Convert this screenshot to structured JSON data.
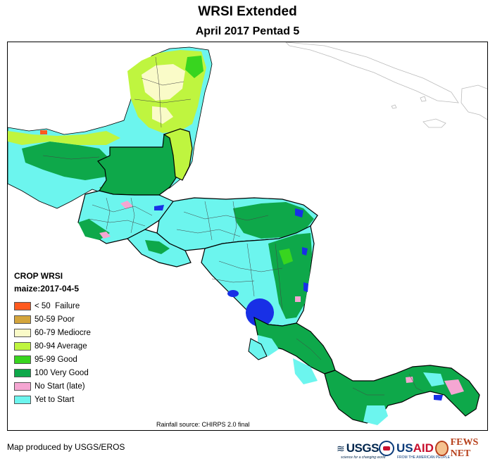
{
  "title": "WRSI Extended",
  "subtitle": "April 2017 Pentad 5",
  "legend": {
    "title": "CROP WRSI",
    "subtitle": "maize:2017-04-5",
    "items": [
      {
        "label": "< 50  Failure",
        "color": "#ff5a1f"
      },
      {
        "label": "50-59 Poor",
        "color": "#d4a53c"
      },
      {
        "label": "60-79 Mediocre",
        "color": "#fafbc8"
      },
      {
        "label": "80-94 Average",
        "color": "#bff53f"
      },
      {
        "label": "95-99 Good",
        "color": "#38d51f"
      },
      {
        "label": "100 Very Good",
        "color": "#0ea84a"
      },
      {
        "label": "No Start (late)",
        "color": "#f5a6d2"
      },
      {
        "label": "Yet to Start",
        "color": "#6cf5ee"
      }
    ]
  },
  "colors": {
    "water": "#1830e6",
    "border": "#000000",
    "admin": "#444444",
    "outline": "#bbbbbb"
  },
  "rainfall_source": "Rainfall source: CHIRPS 2.0 final",
  "footer": {
    "credit": "Map produced by USGS/EROS",
    "usgs": "USGS",
    "usgs_tagline": "science for a changing world",
    "usaid_a": "US",
    "usaid_b": "AID",
    "usaid_tagline": "FROM THE AMERICAN PEOPLE",
    "fews": "FEWS NET"
  }
}
